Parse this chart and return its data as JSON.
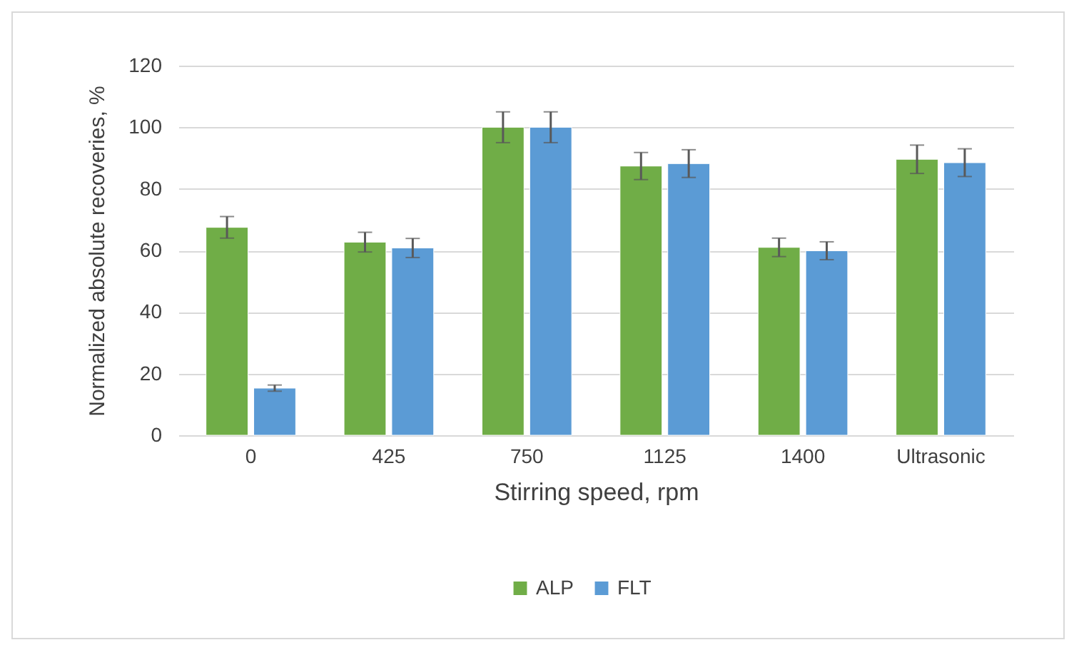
{
  "chart_data": {
    "type": "bar",
    "xlabel": "Stirring speed, rpm",
    "ylabel": "Normalized absolute recoveries, %",
    "categories": [
      "0",
      "425",
      "750",
      "1125",
      "1400",
      "Ultrasonic"
    ],
    "series": [
      {
        "name": "ALP",
        "color": "#70ad47",
        "values": [
          67.5,
          62.7,
          100,
          87.4,
          61,
          89.6
        ],
        "errors": [
          3.5,
          3.2,
          5,
          4.4,
          3,
          4.6
        ]
      },
      {
        "name": "FLT",
        "color": "#5b9bd5",
        "values": [
          15.3,
          60.8,
          100,
          88.2,
          59.9,
          88.5
        ],
        "errors": [
          1,
          3.1,
          5,
          4.5,
          2.9,
          4.5
        ]
      }
    ],
    "ylim": [
      0,
      120
    ],
    "yticks": [
      0,
      20,
      40,
      60,
      80,
      100,
      120
    ],
    "grid": "y",
    "legend": "bottom"
  }
}
